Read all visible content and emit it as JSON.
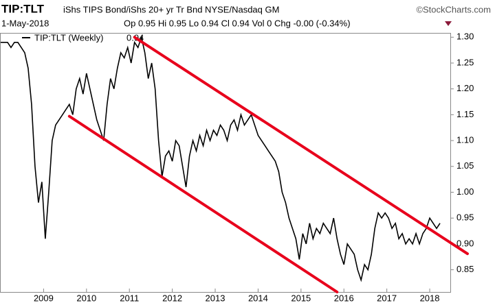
{
  "chart_data": {
    "type": "line",
    "title": "TIP:TLT",
    "subtitle": "iShs TIPS Bond/iShs 20+ yr Tr Bnd NYSE/Nasdaq GM",
    "source": "©StockCharts.com",
    "date": "1-May-2018",
    "quote": "Op 0.95 Hi 0.95 Lo 0.94 Cl 0.94 Vol 0 Chg -0.00 (-0.34%)",
    "x": [
      2008,
      2008.08,
      2008.16,
      2008.24,
      2008.32,
      2008.4,
      2008.48,
      2008.56,
      2008.64,
      2008.72,
      2008.8,
      2008.88,
      2008.96,
      2009.04,
      2009.12,
      2009.2,
      2009.28,
      2009.36,
      2009.44,
      2009.52,
      2009.6,
      2009.68,
      2009.76,
      2009.84,
      2009.92,
      2010,
      2010.08,
      2010.16,
      2010.24,
      2010.32,
      2010.4,
      2010.48,
      2010.56,
      2010.64,
      2010.72,
      2010.8,
      2010.88,
      2010.96,
      2011.04,
      2011.12,
      2011.2,
      2011.28,
      2011.36,
      2011.44,
      2011.52,
      2011.6,
      2011.68,
      2011.76,
      2011.84,
      2011.92,
      2012,
      2012.08,
      2012.16,
      2012.24,
      2012.32,
      2012.4,
      2012.48,
      2012.56,
      2012.64,
      2012.72,
      2012.8,
      2012.88,
      2012.96,
      2013.04,
      2013.12,
      2013.2,
      2013.28,
      2013.36,
      2013.44,
      2013.52,
      2013.6,
      2013.68,
      2013.76,
      2013.84,
      2013.92,
      2014,
      2014.08,
      2014.16,
      2014.24,
      2014.32,
      2014.4,
      2014.48,
      2014.56,
      2014.64,
      2014.72,
      2014.8,
      2014.88,
      2014.96,
      2015.04,
      2015.12,
      2015.2,
      2015.28,
      2015.36,
      2015.44,
      2015.52,
      2015.6,
      2015.68,
      2015.76,
      2015.84,
      2015.92,
      2016,
      2016.08,
      2016.16,
      2016.24,
      2016.32,
      2016.4,
      2016.48,
      2016.56,
      2016.64,
      2016.72,
      2016.8,
      2016.88,
      2016.96,
      2017.04,
      2017.12,
      2017.2,
      2017.28,
      2017.36,
      2017.44,
      2017.52,
      2017.6,
      2017.68,
      2017.76,
      2017.84,
      2017.92,
      2018,
      2018.08,
      2018.16,
      2018.24
    ],
    "series": [
      {
        "name": "TIP:TLT (Weekly)",
        "color": "#000000",
        "values": [
          1.29,
          1.29,
          1.29,
          1.28,
          1.29,
          1.29,
          1.28,
          1.27,
          1.24,
          1.17,
          1.05,
          0.98,
          1.02,
          0.91,
          1.0,
          1.1,
          1.13,
          1.14,
          1.15,
          1.16,
          1.17,
          1.15,
          1.2,
          1.22,
          1.19,
          1.23,
          1.2,
          1.17,
          1.14,
          1.12,
          1.1,
          1.17,
          1.22,
          1.2,
          1.24,
          1.27,
          1.26,
          1.28,
          1.25,
          1.29,
          1.28,
          1.3,
          1.27,
          1.22,
          1.25,
          1.2,
          1.1,
          1.03,
          1.07,
          1.08,
          1.06,
          1.1,
          1.09,
          1.05,
          1.01,
          1.07,
          1.1,
          1.08,
          1.11,
          1.09,
          1.12,
          1.1,
          1.12,
          1.11,
          1.13,
          1.12,
          1.1,
          1.13,
          1.14,
          1.12,
          1.15,
          1.13,
          1.14,
          1.15,
          1.13,
          1.11,
          1.1,
          1.09,
          1.08,
          1.07,
          1.06,
          1.04,
          1.0,
          0.98,
          0.95,
          0.93,
          0.91,
          0.87,
          0.92,
          0.9,
          0.94,
          0.91,
          0.93,
          0.92,
          0.94,
          0.93,
          0.92,
          0.95,
          0.91,
          0.88,
          0.86,
          0.9,
          0.89,
          0.88,
          0.85,
          0.83,
          0.86,
          0.85,
          0.88,
          0.93,
          0.96,
          0.95,
          0.96,
          0.95,
          0.93,
          0.94,
          0.91,
          0.92,
          0.9,
          0.91,
          0.9,
          0.92,
          0.9,
          0.92,
          0.93,
          0.95,
          0.94,
          0.93,
          0.94
        ]
      }
    ],
    "trendlines": [
      {
        "color": "#e8001c",
        "x": [
          2011.12,
          2018.88
        ],
        "values": [
          1.3,
          0.881
        ]
      },
      {
        "color": "#e8001c",
        "x": [
          2009.6,
          2015.84
        ],
        "values": [
          1.147,
          0.807
        ]
      }
    ],
    "xlim": [
      2008,
      2018.48
    ],
    "xticks": [
      2009,
      2010,
      2011,
      2012,
      2013,
      2014,
      2015,
      2016,
      2017,
      2018
    ],
    "ylim": [
      0.807,
      1.307
    ],
    "yticks": [
      0.85,
      {
        "value": 0.9,
        "label": "0.90"
      },
      0.95,
      {
        "value": 1.0,
        "label": "1.00"
      },
      1.05,
      {
        "value": 1.1,
        "label": "1.10"
      },
      1.15,
      {
        "value": 1.2,
        "label": "1.20"
      },
      1.25,
      {
        "value": 1.3,
        "label": "1.30"
      }
    ]
  }
}
